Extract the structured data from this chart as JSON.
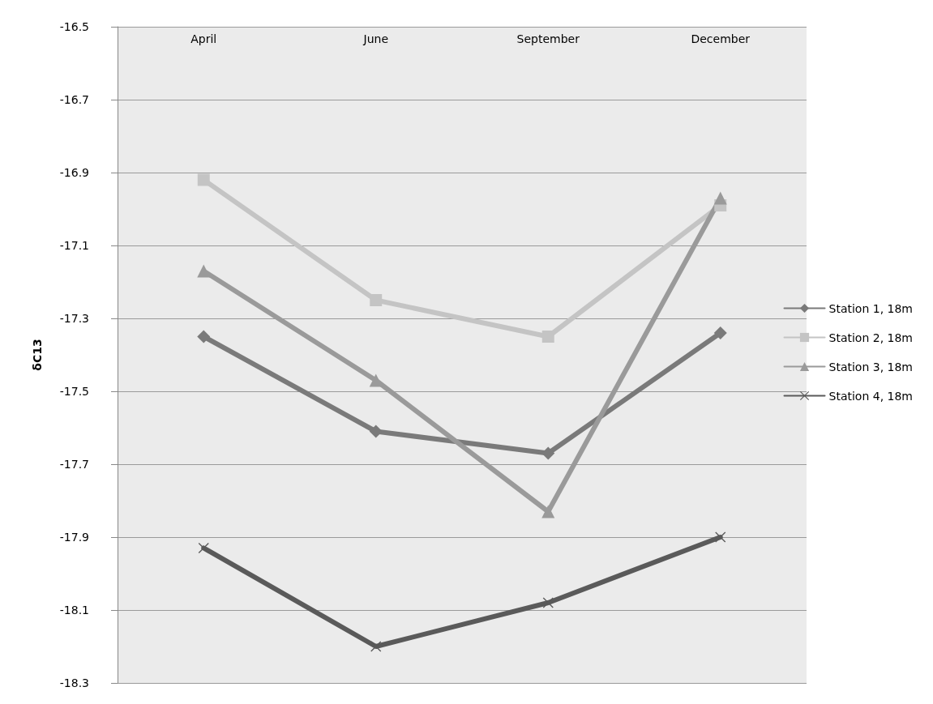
{
  "chart_data": {
    "type": "line",
    "ylabel": "δC13",
    "categories": [
      "April",
      "June",
      "September",
      "December"
    ],
    "ylim": [
      -18.3,
      -16.5
    ],
    "yticks": [
      -18.3,
      -18.1,
      -17.9,
      -17.7,
      -17.5,
      -17.3,
      -17.1,
      -16.9,
      -16.7,
      -16.5
    ],
    "grid": "y",
    "legend": "right",
    "line_style": "solid",
    "series": [
      {
        "name": "Station 1, 18m",
        "color": "#7a7a7a",
        "marker": "diamond",
        "values": [
          -17.35,
          -17.61,
          -17.67,
          -17.34
        ]
      },
      {
        "name": "Station 2, 18m",
        "color": "#c4c4c4",
        "marker": "square",
        "values": [
          -16.92,
          -17.25,
          -17.35,
          -16.99
        ]
      },
      {
        "name": "Station 3, 18m",
        "color": "#9a9a9a",
        "marker": "triangle",
        "values": [
          -17.17,
          -17.47,
          -17.83,
          -16.97
        ]
      },
      {
        "name": "Station 4, 18m",
        "color": "#5a5a5a",
        "marker": "cross",
        "values": [
          -17.93,
          -18.2,
          -18.08,
          -17.9
        ]
      }
    ]
  }
}
